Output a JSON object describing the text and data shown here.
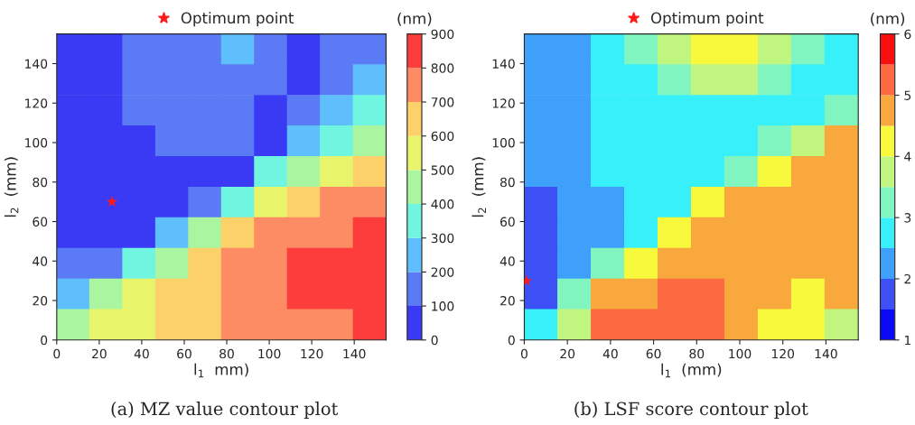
{
  "chart_data": [
    {
      "type": "scatter",
      "xlabel": "l$_{1}$  mm)",
      "ylabel": "l$_{2}$  (mm)",
      "clabel": "(nm)",
      "xlim": [
        0,
        155
      ],
      "ylim": [
        0,
        155
      ],
      "xticks": [
        0,
        20,
        40,
        60,
        80,
        100,
        120,
        140
      ],
      "yticks": [
        0,
        20,
        40,
        60,
        80,
        100,
        120,
        140
      ],
      "clim": [
        0,
        900
      ],
      "cticks": [
        0,
        100,
        200,
        300,
        400,
        500,
        600,
        700,
        800,
        900
      ],
      "colors": [
        "#3a3af5",
        "#5b7af5",
        "#5fbefc",
        "#6ff5e0",
        "#aaf5a0",
        "#e8f56a",
        "#fdd16a",
        "#fd8c64",
        "#fd3c3c"
      ],
      "series": [
        {
          "marker": "square",
          "x": [
            7.75,
            23.25,
            38.75,
            54.25,
            69.75,
            85.25,
            100.75,
            116.25,
            131.75,
            147.25,
            7.75,
            23.25,
            38.75,
            54.25,
            69.75,
            85.25,
            100.75,
            116.25,
            131.75,
            147.25,
            7.75,
            23.25,
            38.75,
            54.25,
            69.75,
            85.25,
            100.75,
            116.25,
            131.75,
            147.25,
            7.75,
            23.25,
            38.75,
            54.25,
            69.75,
            85.25,
            100.75,
            116.25,
            131.75,
            147.25,
            7.75,
            23.25,
            38.75,
            54.25,
            69.75,
            85.25,
            100.75,
            116.25,
            131.75,
            147.25,
            7.75,
            23.25,
            38.75,
            54.25,
            69.75,
            85.25,
            100.75,
            116.25,
            131.75,
            147.25,
            7.75,
            23.25,
            38.75,
            54.25,
            69.75,
            85.25,
            100.75,
            116.25,
            131.75,
            147.25,
            7.75,
            23.25,
            38.75,
            54.25,
            69.75,
            85.25,
            100.75,
            116.25,
            131.75,
            147.25,
            7.75,
            23.25,
            38.75,
            54.25,
            69.75,
            85.25,
            100.75,
            116.25,
            131.75,
            147.25,
            7.75,
            23.25,
            38.75,
            54.25,
            69.75,
            85.25,
            100.75,
            116.25,
            131.75,
            147.25
          ],
          "values": [
            147.25,
            147.25,
            147.25,
            147.25,
            147.25,
            147.25,
            147.25,
            147.25,
            147.25,
            147.25,
            131.75,
            131.75,
            131.75,
            131.75,
            131.75,
            131.75,
            131.75,
            131.75,
            131.75,
            131.75,
            116.25,
            116.25,
            116.25,
            116.25,
            116.25,
            116.25,
            116.25,
            116.25,
            116.25,
            116.25,
            100.75,
            100.75,
            100.75,
            100.75,
            100.75,
            100.75,
            100.75,
            100.75,
            100.75,
            100.75,
            85.25,
            85.25,
            85.25,
            85.25,
            85.25,
            85.25,
            85.25,
            85.25,
            85.25,
            85.25,
            69.75,
            69.75,
            69.75,
            69.75,
            69.75,
            69.75,
            69.75,
            69.75,
            69.75,
            69.75,
            54.25,
            54.25,
            54.25,
            54.25,
            54.25,
            54.25,
            54.25,
            54.25,
            54.25,
            54.25,
            38.75,
            38.75,
            38.75,
            38.75,
            38.75,
            38.75,
            38.75,
            38.75,
            38.75,
            38.75,
            23.25,
            23.25,
            23.25,
            23.25,
            23.25,
            23.25,
            23.25,
            23.25,
            23.25,
            23.25,
            7.75,
            7.75,
            7.75,
            7.75,
            7.75,
            7.75,
            7.75,
            7.75,
            7.75,
            7.75
          ],
          "colors": [
            "#3a3af5",
            "#3a3af5",
            "#5b7af5",
            "#5b7af5",
            "#5b7af5",
            "#5fbefc",
            "#5b7af5",
            "#3a3af5",
            "#5b7af5",
            "#5b7af5",
            "#3a3af5",
            "#3a3af5",
            "#5b7af5",
            "#5b7af5",
            "#5b7af5",
            "#5b7af5",
            "#5b7af5",
            "#3a3af5",
            "#5b7af5",
            "#5fbefc",
            "#3a3af5",
            "#3a3af5",
            "#5b7af5",
            "#5b7af5",
            "#5b7af5",
            "#5b7af5",
            "#3a3af5",
            "#5b7af5",
            "#5fbefc",
            "#6ff5e0",
            "#3a3af5",
            "#3a3af5",
            "#3a3af5",
            "#5b7af5",
            "#5b7af5",
            "#5b7af5",
            "#3a3af5",
            "#5fbefc",
            "#6ff5e0",
            "#aaf5a0",
            "#3a3af5",
            "#3a3af5",
            "#3a3af5",
            "#3a3af5",
            "#3a3af5",
            "#3a3af5",
            "#6ff5e0",
            "#aaf5a0",
            "#e8f56a",
            "#fdd16a",
            "#3a3af5",
            "#3a3af5",
            "#3a3af5",
            "#3a3af5",
            "#5b7af5",
            "#6ff5e0",
            "#e8f56a",
            "#fdd16a",
            "#fd8c64",
            "#fd8c64",
            "#3a3af5",
            "#3a3af5",
            "#3a3af5",
            "#5fbefc",
            "#aaf5a0",
            "#fdd16a",
            "#fd8c64",
            "#fd8c64",
            "#fd8c64",
            "#fd3c3c",
            "#5b7af5",
            "#5b7af5",
            "#6ff5e0",
            "#aaf5a0",
            "#fdd16a",
            "#fd8c64",
            "#fd8c64",
            "#fd3c3c",
            "#fd3c3c",
            "#fd3c3c",
            "#5fbefc",
            "#aaf5a0",
            "#e8f56a",
            "#fdd16a",
            "#fdd16a",
            "#fd8c64",
            "#fd8c64",
            "#fd3c3c",
            "#fd3c3c",
            "#fd3c3c",
            "#aaf5a0",
            "#e8f56a",
            "#e8f56a",
            "#fdd16a",
            "#fdd16a",
            "#fd8c64",
            "#fd8c64",
            "#fd8c64",
            "#fd8c64",
            "#fd3c3c"
          ],
          "type": "scatter"
        },
        {
          "name": "Optimum point",
          "color": "#ff1a1a",
          "marker": "star",
          "x": [
            26
          ],
          "values": [
            70
          ]
        }
      ],
      "legend": "top",
      "annotations": [
        "(a) MZ value contour plot"
      ]
    },
    {
      "type": "scatter",
      "xlabel": "l$_{1}$  (mm)",
      "ylabel": "l$_{2}$  (mm)",
      "clabel": "(nm)",
      "xlim": [
        0,
        155
      ],
      "ylim": [
        0,
        155
      ],
      "xticks": [
        0,
        20,
        40,
        60,
        80,
        100,
        120,
        140
      ],
      "yticks": [
        0,
        20,
        40,
        60,
        80,
        100,
        120,
        140
      ],
      "clim": [
        1,
        6
      ],
      "cticks": [
        1,
        2,
        3,
        4,
        5,
        6
      ],
      "colors": [
        "#0a0af5",
        "#3c50f5",
        "#3fa0fc",
        "#38f0fa",
        "#80f5c0",
        "#c0f580",
        "#f8f83c",
        "#f8a83c",
        "#fb6a40",
        "#f81010"
      ],
      "series": [
        {
          "marker": "square",
          "x": [
            7.75,
            23.25,
            38.75,
            54.25,
            69.75,
            85.25,
            100.75,
            116.25,
            131.75,
            147.25,
            7.75,
            23.25,
            38.75,
            54.25,
            69.75,
            85.25,
            100.75,
            116.25,
            131.75,
            147.25,
            7.75,
            23.25,
            38.75,
            54.25,
            69.75,
            85.25,
            100.75,
            116.25,
            131.75,
            147.25,
            7.75,
            23.25,
            38.75,
            54.25,
            69.75,
            85.25,
            100.75,
            116.25,
            131.75,
            147.25,
            7.75,
            23.25,
            38.75,
            54.25,
            69.75,
            85.25,
            100.75,
            116.25,
            131.75,
            147.25,
            7.75,
            23.25,
            38.75,
            54.25,
            69.75,
            85.25,
            100.75,
            116.25,
            131.75,
            147.25,
            7.75,
            23.25,
            38.75,
            54.25,
            69.75,
            85.25,
            100.75,
            116.25,
            131.75,
            147.25,
            7.75,
            23.25,
            38.75,
            54.25,
            69.75,
            85.25,
            100.75,
            116.25,
            131.75,
            147.25,
            7.75,
            23.25,
            38.75,
            54.25,
            69.75,
            85.25,
            100.75,
            116.25,
            131.75,
            147.25,
            7.75,
            23.25,
            38.75,
            54.25,
            69.75,
            85.25,
            100.75,
            116.25,
            131.75,
            147.25
          ],
          "values": [
            147.25,
            147.25,
            147.25,
            147.25,
            147.25,
            147.25,
            147.25,
            147.25,
            147.25,
            147.25,
            131.75,
            131.75,
            131.75,
            131.75,
            131.75,
            131.75,
            131.75,
            131.75,
            131.75,
            131.75,
            116.25,
            116.25,
            116.25,
            116.25,
            116.25,
            116.25,
            116.25,
            116.25,
            116.25,
            116.25,
            100.75,
            100.75,
            100.75,
            100.75,
            100.75,
            100.75,
            100.75,
            100.75,
            100.75,
            100.75,
            85.25,
            85.25,
            85.25,
            85.25,
            85.25,
            85.25,
            85.25,
            85.25,
            85.25,
            85.25,
            69.75,
            69.75,
            69.75,
            69.75,
            69.75,
            69.75,
            69.75,
            69.75,
            69.75,
            69.75,
            54.25,
            54.25,
            54.25,
            54.25,
            54.25,
            54.25,
            54.25,
            54.25,
            54.25,
            54.25,
            38.75,
            38.75,
            38.75,
            38.75,
            38.75,
            38.75,
            38.75,
            38.75,
            38.75,
            38.75,
            23.25,
            23.25,
            23.25,
            23.25,
            23.25,
            23.25,
            23.25,
            23.25,
            23.25,
            23.25,
            7.75,
            7.75,
            7.75,
            7.75,
            7.75,
            7.75,
            7.75,
            7.75,
            7.75,
            7.75
          ],
          "colors": [
            "#3fa0fc",
            "#3fa0fc",
            "#38f0fa",
            "#80f5c0",
            "#c0f580",
            "#f8f83c",
            "#f8f83c",
            "#c0f580",
            "#80f5c0",
            "#38f0fa",
            "#3fa0fc",
            "#3fa0fc",
            "#38f0fa",
            "#38f0fa",
            "#80f5c0",
            "#c0f580",
            "#c0f580",
            "#80f5c0",
            "#38f0fa",
            "#38f0fa",
            "#3fa0fc",
            "#3fa0fc",
            "#38f0fa",
            "#38f0fa",
            "#38f0fa",
            "#38f0fa",
            "#38f0fa",
            "#38f0fa",
            "#38f0fa",
            "#80f5c0",
            "#3fa0fc",
            "#3fa0fc",
            "#38f0fa",
            "#38f0fa",
            "#38f0fa",
            "#38f0fa",
            "#38f0fa",
            "#80f5c0",
            "#c0f580",
            "#f8a83c",
            "#3fa0fc",
            "#3fa0fc",
            "#38f0fa",
            "#38f0fa",
            "#38f0fa",
            "#38f0fa",
            "#80f5c0",
            "#f8f83c",
            "#f8a83c",
            "#f8a83c",
            "#3c50f5",
            "#3fa0fc",
            "#3fa0fc",
            "#38f0fa",
            "#38f0fa",
            "#f8f83c",
            "#f8a83c",
            "#f8a83c",
            "#f8a83c",
            "#f8a83c",
            "#3c50f5",
            "#3fa0fc",
            "#3fa0fc",
            "#38f0fa",
            "#f8f83c",
            "#f8a83c",
            "#f8a83c",
            "#f8a83c",
            "#f8a83c",
            "#f8a83c",
            "#3c50f5",
            "#3fa0fc",
            "#80f5c0",
            "#f8f83c",
            "#f8a83c",
            "#f8a83c",
            "#f8a83c",
            "#f8a83c",
            "#f8a83c",
            "#f8a83c",
            "#3c50f5",
            "#80f5c0",
            "#f8a83c",
            "#f8a83c",
            "#fb6a40",
            "#fb6a40",
            "#f8a83c",
            "#f8a83c",
            "#f8f83c",
            "#f8a83c",
            "#38f0fa",
            "#c0f580",
            "#fb6a40",
            "#fb6a40",
            "#fb6a40",
            "#fb6a40",
            "#f8a83c",
            "#f8f83c",
            "#f8f83c",
            "#c0f580"
          ],
          "type": "scatter"
        },
        {
          "name": "Optimum point",
          "color": "#ff1a1a",
          "marker": "star",
          "x": [
            1
          ],
          "values": [
            30
          ]
        }
      ],
      "legend": "top",
      "annotations": [
        "(b) LSF score contour plot"
      ]
    }
  ]
}
